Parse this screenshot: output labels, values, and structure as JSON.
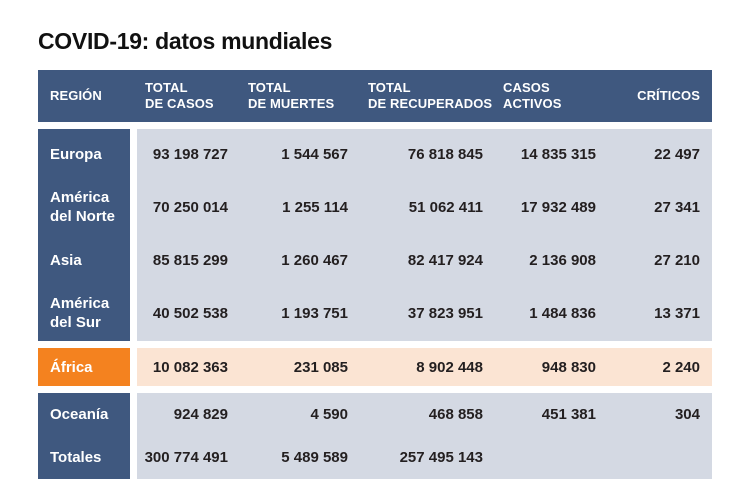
{
  "title": "COVID-19: datos mundiales",
  "table": {
    "headers": [
      {
        "id": "region",
        "lines": [
          "REGIÓN"
        ]
      },
      {
        "id": "casos",
        "lines": [
          "TOTAL",
          "DE CASOS"
        ]
      },
      {
        "id": "muertes",
        "lines": [
          "TOTAL",
          "DE MUERTES"
        ]
      },
      {
        "id": "recuperados",
        "lines": [
          "TOTAL",
          "DE RECUPERADOS"
        ]
      },
      {
        "id": "activos",
        "lines": [
          "CASOS",
          "ACTIVOS"
        ]
      },
      {
        "id": "criticos",
        "lines": [
          "CRÍTICOS"
        ]
      }
    ],
    "row_groups": [
      {
        "name": "continentes-principales",
        "theme": "blue",
        "rows": [
          {
            "region": "Europa",
            "casos": "93 198 727",
            "muertes": "1 544 567",
            "recuperados": "76 818 845",
            "activos": "14 835 315",
            "criticos": "22 497"
          },
          {
            "region": "América del Norte",
            "casos": "70 250 014",
            "muertes": "1 255 114",
            "recuperados": "51 062 411",
            "activos": "17 932 489",
            "criticos": "27 341"
          },
          {
            "region": "Asia",
            "casos": "85 815 299",
            "muertes": "1 260 467",
            "recuperados": "82 417 924",
            "activos": "2 136 908",
            "criticos": "27 210"
          },
          {
            "region": "América del Sur",
            "casos": "40 502 538",
            "muertes": "1 193 751",
            "recuperados": "37 823 951",
            "activos": "1 484 836",
            "criticos": "13 371"
          }
        ]
      },
      {
        "name": "africa-destacada",
        "theme": "orange",
        "rows": [
          {
            "region": "África",
            "casos": "10 082 363",
            "muertes": "231 085",
            "recuperados": "8 902 448",
            "activos": "948 830",
            "criticos": "2 240"
          }
        ]
      },
      {
        "name": "oceania-y-totales",
        "theme": "blue",
        "rows": [
          {
            "region": "Oceanía",
            "casos": "924 829",
            "muertes": "4 590",
            "recuperados": "468 858",
            "activos": "451 381",
            "criticos": "304"
          },
          {
            "region": "Totales",
            "casos": "300 774 491",
            "muertes": "5 489 589",
            "recuperados": "257 495 143",
            "activos": "",
            "criticos": ""
          }
        ]
      }
    ]
  },
  "colors": {
    "header_blue": "#3F587F",
    "row_light_blue": "#D4D9E3",
    "highlight_orange": "#F4821F",
    "highlight_peach": "#FBE4D3",
    "text_dark": "#231F20",
    "background": "#FFFFFF"
  },
  "chart_data": {
    "type": "table",
    "title": "COVID-19: datos mundiales",
    "columns": [
      "REGIÓN",
      "TOTAL DE CASOS",
      "TOTAL DE MUERTES",
      "TOTAL DE RECUPERADOS",
      "CASOS ACTIVOS",
      "CRÍTICOS"
    ],
    "rows": [
      [
        "Europa",
        93198727,
        1544567,
        76818845,
        14835315,
        22497
      ],
      [
        "América del Norte",
        70250014,
        1255114,
        51062411,
        17932489,
        27341
      ],
      [
        "Asia",
        85815299,
        1260467,
        82417924,
        2136908,
        27210
      ],
      [
        "América del Sur",
        40502538,
        1193751,
        37823951,
        1484836,
        13371
      ],
      [
        "África",
        10082363,
        231085,
        8902448,
        948830,
        2240
      ],
      [
        "Oceanía",
        924829,
        4590,
        468858,
        451381,
        304
      ],
      [
        "Totales",
        300774491,
        5489589,
        257495143,
        null,
        null
      ]
    ],
    "highlighted_row": "África",
    "legend": "off",
    "grid": "off"
  }
}
